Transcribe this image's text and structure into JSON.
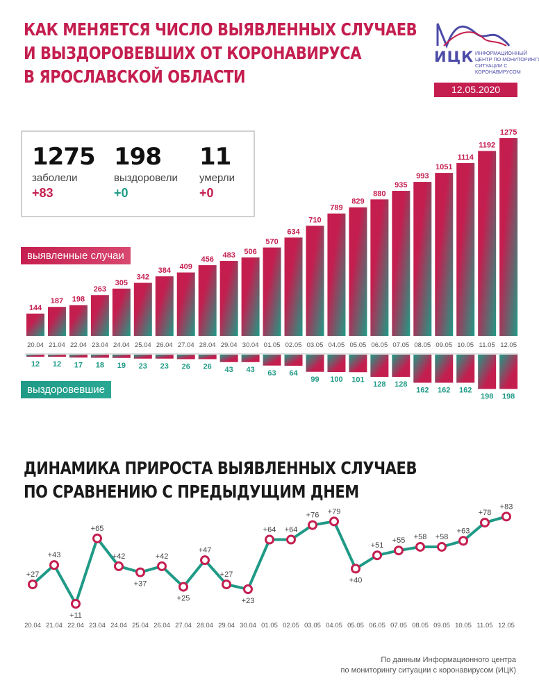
{
  "header": {
    "title_lines": [
      "КАК МЕНЯЕТСЯ ЧИСЛО ВЫЯВЛЕННЫХ СЛУЧАЕВ",
      "И ВЫЗДОРОВЕВШИХ ОТ КОРОНАВИРУСА",
      "В ЯРОСЛАВСКОЙ ОБЛАСТИ"
    ],
    "logo_name": "ИЦК",
    "logo_subtitle": "Информационный центр по мониторингу ситуации с коронавирусом",
    "date": "12.05.2020"
  },
  "summary": {
    "cases": {
      "value": "1275",
      "label": "заболели",
      "delta": "+83"
    },
    "recovered": {
      "value": "198",
      "label": "выздоровели",
      "delta": "+0"
    },
    "deaths": {
      "value": "11",
      "label": "умерли",
      "delta": "+0"
    }
  },
  "legend": {
    "cases_label": "выявленные случаи",
    "recovered_label": "выздоровевшие"
  },
  "section2_title_lines": [
    "ДИНАМИКА ПРИРОСТА ВЫЯВЛЕННЫХ СЛУЧАЕВ",
    "ПО СРАВНЕНИЮ С ПРЕДЫДУЩИМ ДНЕМ"
  ],
  "source_lines": [
    "По данным Информационного центра",
    "по мониторингу ситуации с коронавирусом (ИЦК)"
  ],
  "colors": {
    "red": "#c41e4f",
    "teal": "#1f9a86",
    "purple": "#4c4ba8"
  },
  "chart_data": [
    {
      "type": "bar",
      "categories": [
        "20.04",
        "21.04",
        "22.04",
        "23.04",
        "24.04",
        "25.04",
        "26.04",
        "27.04",
        "28.04",
        "29.04",
        "30.04",
        "01.05",
        "02.05",
        "03.05",
        "04.05",
        "05.05",
        "06.05",
        "07.05",
        "08.05",
        "09.05",
        "10.05",
        "11.05",
        "12.05"
      ],
      "series": [
        {
          "name": "выявленные случаи",
          "values": [
            144,
            187,
            198,
            263,
            305,
            342,
            384,
            409,
            456,
            483,
            506,
            570,
            634,
            710,
            789,
            829,
            880,
            935,
            993,
            1051,
            1114,
            1192,
            1275
          ]
        },
        {
          "name": "выздоровевшие",
          "values": [
            12,
            12,
            17,
            18,
            19,
            23,
            23,
            26,
            26,
            43,
            43,
            63,
            64,
            99,
            100,
            101,
            128,
            128,
            162,
            162,
            162,
            198,
            198
          ]
        }
      ]
    },
    {
      "type": "line",
      "categories": [
        "20.04",
        "21.04",
        "22.04",
        "23.04",
        "24.04",
        "25.04",
        "26.04",
        "27.04",
        "28.04",
        "29.04",
        "30.04",
        "01.05",
        "02.05",
        "03.05",
        "04.05",
        "05.05",
        "06.05",
        "07.05",
        "08.05",
        "09.05",
        "10.05",
        "11.05",
        "12.05"
      ],
      "values": [
        27,
        43,
        11,
        65,
        42,
        37,
        42,
        25,
        47,
        27,
        23,
        64,
        64,
        76,
        79,
        40,
        51,
        55,
        58,
        58,
        63,
        78,
        83
      ],
      "labels": [
        "+27",
        "+43",
        "+11",
        "+65",
        "+42",
        "+37",
        "+42",
        "+25",
        "+47",
        "+27",
        "+23",
        "+64",
        "+64",
        "+76",
        "+79",
        "+40",
        "+51",
        "+55",
        "+58",
        "+58",
        "+63",
        "+78",
        "+83"
      ]
    }
  ]
}
